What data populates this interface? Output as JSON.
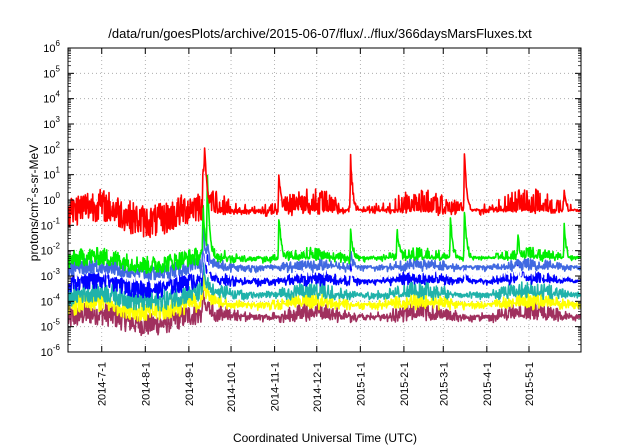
{
  "chart_data": {
    "type": "line",
    "title": "/data/run/goesPlots/archive/2015-06-07/flux/../flux/366daysMarsFluxes.txt",
    "xlabel": "Coordinated Universal Time (UTC)",
    "ylabel": {
      "prefix": "protons/cm",
      "superscript": "2",
      "suffix": "-s-sr-MeV"
    },
    "x_range": [
      "2014-06-07",
      "2015-06-07"
    ],
    "x_ticks": [
      "2014-7-1",
      "2014-8-1",
      "2014-9-1",
      "2014-10-1",
      "2014-11-1",
      "2014-12-1",
      "2015-1-1",
      "2015-2-1",
      "2015-3-1",
      "2015-4-1",
      "2015-5-1"
    ],
    "y_scale": "log",
    "y_range": [
      1e-06,
      1000000.0
    ],
    "y_ticks": [
      {
        "base": "10",
        "exp": "-6",
        "value": 1e-06
      },
      {
        "base": "10",
        "exp": "-5",
        "value": 1e-05
      },
      {
        "base": "10",
        "exp": "-4",
        "value": 0.0001
      },
      {
        "base": "10",
        "exp": "-3",
        "value": 0.001
      },
      {
        "base": "10",
        "exp": "-2",
        "value": 0.01
      },
      {
        "base": "10",
        "exp": "-1",
        "value": 0.1
      },
      {
        "base": "10",
        "exp": "0",
        "value": 1
      },
      {
        "base": "10",
        "exp": "1",
        "value": 10.0
      },
      {
        "base": "10",
        "exp": "2",
        "value": 100.0
      },
      {
        "base": "10",
        "exp": "3",
        "value": 1000.0
      },
      {
        "base": "10",
        "exp": "4",
        "value": 10000.0
      },
      {
        "base": "10",
        "exp": "5",
        "value": 100000.0
      },
      {
        "base": "10",
        "exp": "6",
        "value": 1000000.0
      }
    ],
    "grid": true,
    "series": [
      {
        "color": "#a0305e",
        "baseline": 2e-05,
        "noise": 0.9,
        "events": [
          [
            "2014-09-11",
            0.0003
          ],
          [
            "2014-09-14",
            0.0001
          ]
        ]
      },
      {
        "color": "#ffff00",
        "baseline": 6e-05,
        "noise": 0.8,
        "events": [
          [
            "2014-09-11",
            0.002
          ],
          [
            "2014-09-14",
            0.0005
          ]
        ]
      },
      {
        "color": "#20b2aa",
        "baseline": 0.00015,
        "noise": 0.8,
        "events": [
          [
            "2014-09-11",
            0.005
          ],
          [
            "2014-09-14",
            0.001
          ]
        ]
      },
      {
        "color": "#0000ff",
        "baseline": 0.0005,
        "noise": 0.8,
        "events": [
          [
            "2014-09-11",
            0.05
          ],
          [
            "2014-09-14",
            0.01
          ],
          [
            "2014-12-25",
            0.004
          ],
          [
            "2015-03-16",
            0.003
          ],
          [
            "2015-04-23",
            0.004
          ]
        ]
      },
      {
        "color": "#ffffff",
        "baseline": 0.0012,
        "noise": 0.5,
        "events": [
          [
            "2014-09-11",
            0.1
          ]
        ]
      },
      {
        "color": "#4169e1",
        "baseline": 0.0018,
        "noise": 0.6,
        "events": [
          [
            "2014-09-11",
            0.2
          ],
          [
            "2014-09-14",
            0.03
          ],
          [
            "2014-12-25",
            0.01
          ]
        ]
      },
      {
        "color": "#00ee00",
        "baseline": 0.004,
        "noise": 0.7,
        "events": [
          [
            "2014-09-11",
            1.0
          ],
          [
            "2014-09-14",
            20
          ],
          [
            "2014-11-04",
            0.3
          ],
          [
            "2014-12-25",
            0.1
          ],
          [
            "2015-01-27",
            0.1
          ],
          [
            "2015-03-06",
            0.3
          ],
          [
            "2015-03-16",
            0.5
          ],
          [
            "2015-04-23",
            0.05
          ],
          [
            "2015-05-26",
            0.1
          ]
        ]
      },
      {
        "color": "#ff0000",
        "baseline": 0.3,
        "noise": 1.3,
        "events": [
          [
            "2014-09-11",
            40
          ],
          [
            "2014-09-12",
            300
          ],
          [
            "2014-11-04",
            10
          ],
          [
            "2014-12-25",
            60
          ],
          [
            "2015-03-16",
            80
          ],
          [
            "2015-05-26",
            3
          ]
        ]
      }
    ]
  }
}
